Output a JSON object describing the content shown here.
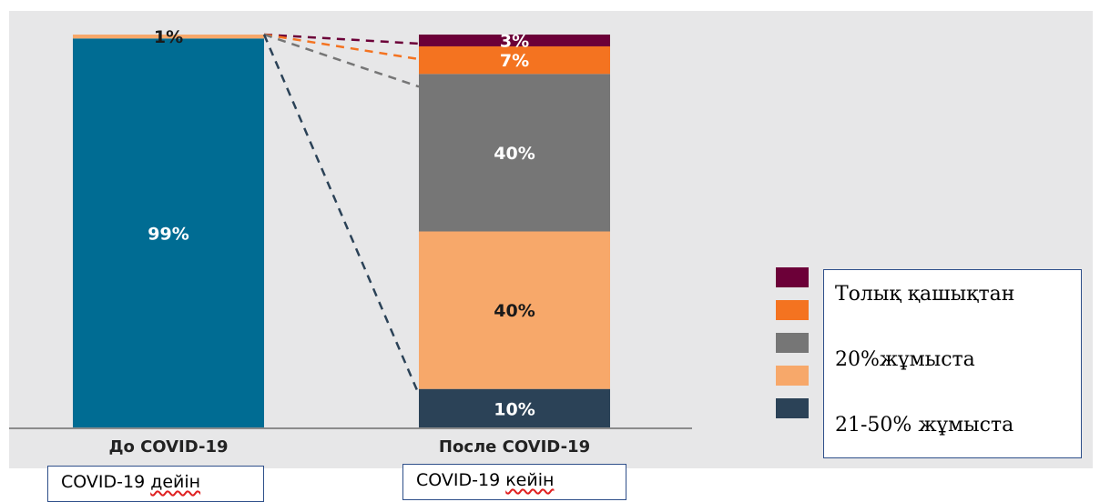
{
  "chart_data": {
    "type": "bar",
    "stacked": true,
    "categories": [
      "До COVID-19",
      "После COVID-19"
    ],
    "ylim": [
      0,
      100
    ],
    "grid": false,
    "colors": {
      "teal": "#006c93",
      "light_orange": "#f7a86a",
      "slate": "#2b4257",
      "gray": "#767676",
      "orange": "#f47320",
      "maroon": "#6c0038",
      "baseline": "#8c8c8c",
      "label_light": "#ffffff",
      "label_dark": "#1a1a1a"
    },
    "bars": [
      {
        "category": "До COVID-19",
        "segments": [
          {
            "value": 99,
            "label": "99%",
            "color": "teal",
            "label_color": "label_light"
          },
          {
            "value": 1,
            "label": "1%",
            "color": "light_orange",
            "label_color": "label_dark"
          }
        ]
      },
      {
        "category": "После COVID-19",
        "segments": [
          {
            "value": 10,
            "label": "10%",
            "color": "slate",
            "label_color": "label_light"
          },
          {
            "value": 40,
            "label": "40%",
            "color": "light_orange",
            "label_color": "label_dark"
          },
          {
            "value": 40,
            "label": "40%",
            "color": "gray",
            "label_color": "label_light"
          },
          {
            "value": 7,
            "label": "7%",
            "color": "orange",
            "label_color": "label_light"
          },
          {
            "value": 3,
            "label": "3%",
            "color": "maroon",
            "label_color": "label_light"
          }
        ]
      }
    ],
    "connectors": [
      {
        "to_segment": 4,
        "color": "maroon"
      },
      {
        "to_segment": 3,
        "color": "orange"
      },
      {
        "to_segment": 2,
        "color": "gray"
      },
      {
        "to_segment": 0,
        "color": "slate"
      }
    ],
    "legend": {
      "placement": "right",
      "swatches": [
        "maroon",
        "orange",
        "gray",
        "light_orange",
        "slate"
      ],
      "lines": [
        "Толық қашықтан",
        "20%жұмыста",
        "21-50% жұмыста"
      ]
    }
  },
  "notes": {
    "before": {
      "prefix": "COVID-19 ",
      "word": "дейін"
    },
    "after": {
      "prefix": "COVID-19 ",
      "word": "кейін"
    }
  }
}
